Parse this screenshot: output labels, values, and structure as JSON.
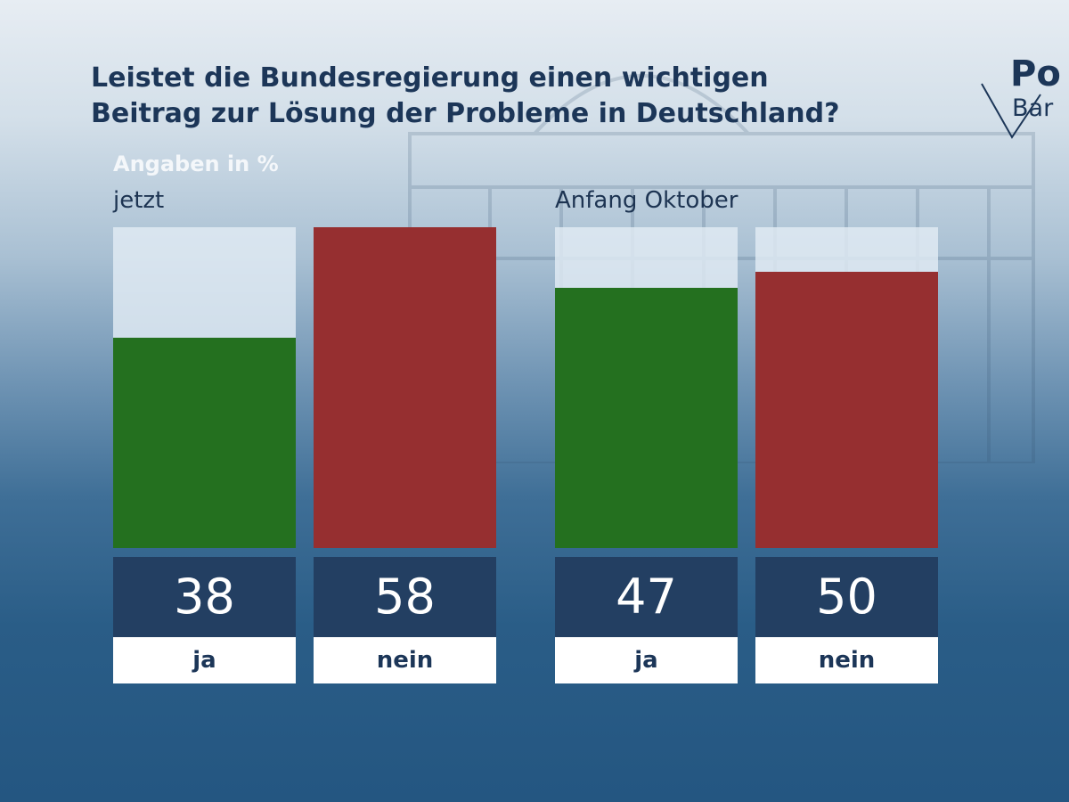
{
  "title": {
    "line1": "Leistet die Bundesregierung einen wichtigen",
    "line2": "Beitrag zur Lösung der Probleme in Deutschland?"
  },
  "logo": {
    "line1": "Po",
    "line2": "Bar"
  },
  "unit_label": "Angaben in %",
  "chart_data": {
    "type": "bar",
    "title": "Leistet die Bundesregierung einen wichtigen Beitrag zur Lösung der Probleme in Deutschland?",
    "unit": "Angaben in %",
    "ylim": [
      0,
      58
    ],
    "grid": false,
    "groups": [
      {
        "label": "jetzt",
        "categories": [
          "ja",
          "nein"
        ],
        "values": [
          38,
          58
        ]
      },
      {
        "label": "Anfang Oktober",
        "categories": [
          "ja",
          "nein"
        ],
        "values": [
          47,
          50
        ]
      }
    ],
    "colors": {
      "ja": "#24701f",
      "nein": "#962f30"
    }
  }
}
